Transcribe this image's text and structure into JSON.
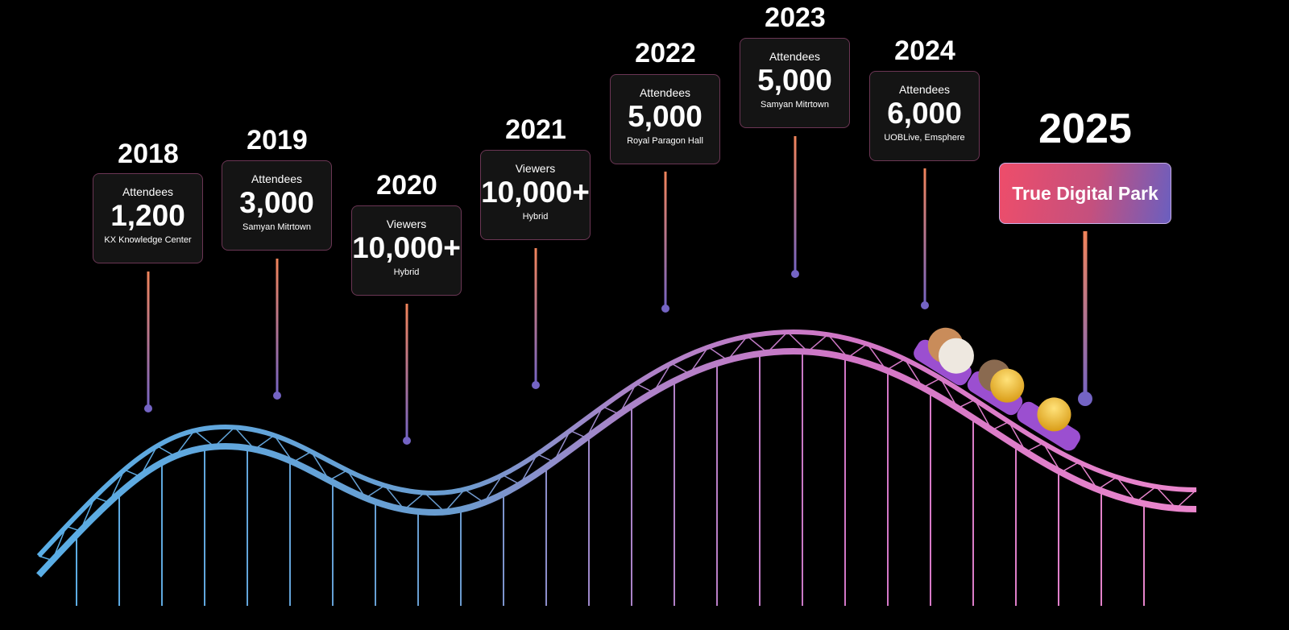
{
  "milestones": [
    {
      "year": "2018",
      "label": "Attendees",
      "value": "1,200",
      "venue": "KX Knowledge Center"
    },
    {
      "year": "2019",
      "label": "Attendees",
      "value": "3,000",
      "venue": "Samyan Mitrtown"
    },
    {
      "year": "2020",
      "label": "Viewers",
      "value": "10,000+",
      "venue": "Hybrid"
    },
    {
      "year": "2021",
      "label": "Viewers",
      "value": "10,000+",
      "venue": "Hybrid"
    },
    {
      "year": "2022",
      "label": "Attendees",
      "value": "5,000",
      "venue": "Royal Paragon Hall"
    },
    {
      "year": "2023",
      "label": "Attendees",
      "value": "5,000",
      "venue": "Samyan Mitrtown"
    },
    {
      "year": "2024",
      "label": "Attendees",
      "value": "6,000",
      "venue": "UOBLive, Emsphere"
    },
    {
      "year": "2025",
      "venue": "True Digital Park"
    }
  ]
}
